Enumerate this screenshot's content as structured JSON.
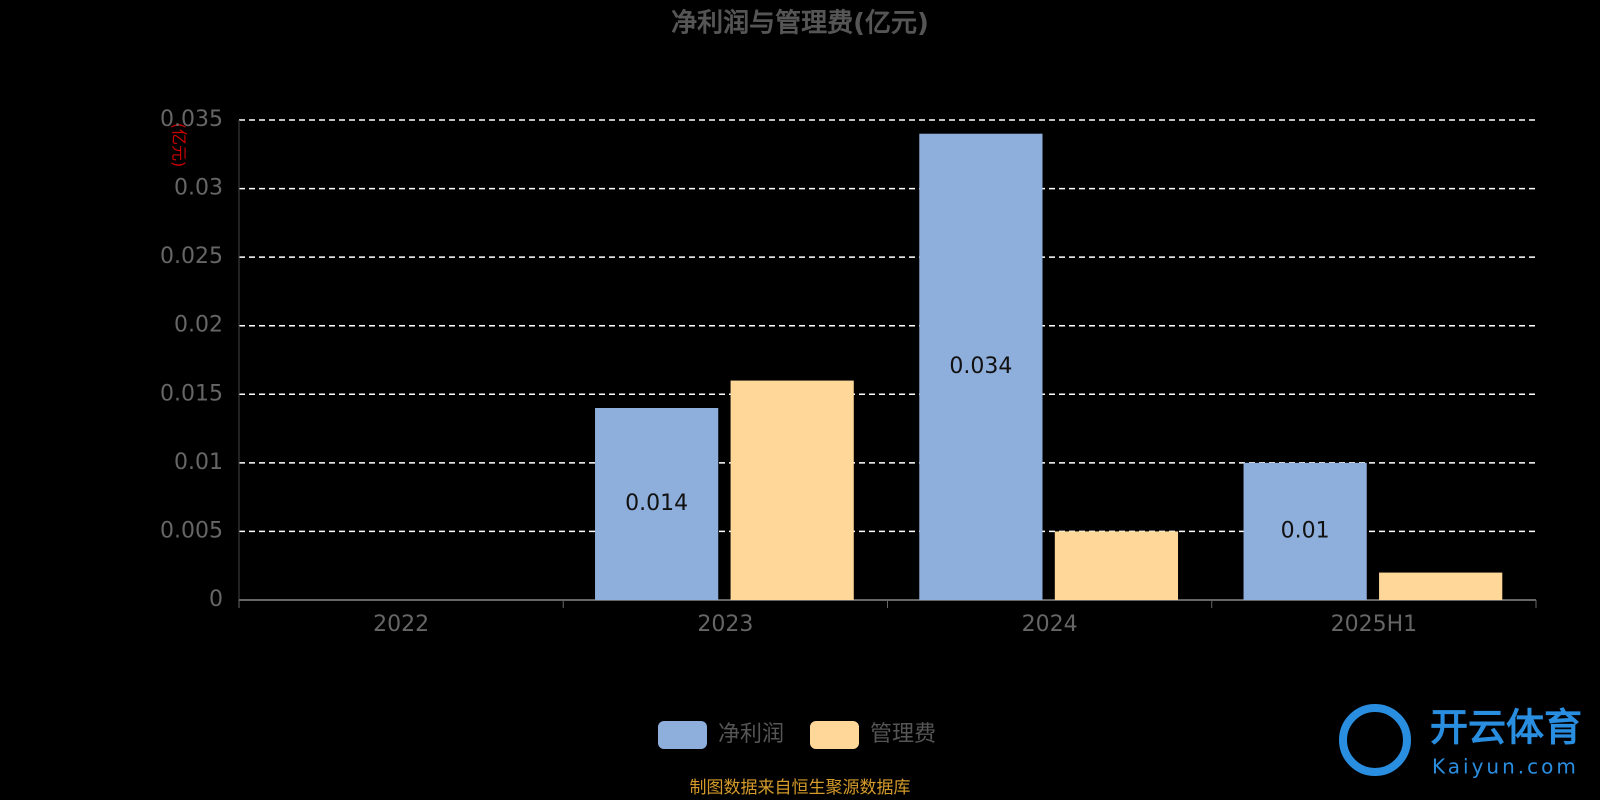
{
  "chart_data": {
    "type": "bar",
    "title": "净利润与管理费(亿元)",
    "y_label": "(亿元)",
    "categories": [
      "2022",
      "2023",
      "2024",
      "2025H1"
    ],
    "series": [
      {
        "name": "净利润",
        "color": "#8eaedb",
        "values": [
          null,
          0.014,
          0.034,
          0.01
        ],
        "labels": true
      },
      {
        "name": "管理费",
        "color": "#ffd899",
        "values": [
          null,
          0.016,
          0.005,
          0.002
        ],
        "labels": false
      }
    ],
    "ylim": [
      0,
      0.035
    ],
    "yticks": [
      0,
      0.005,
      0.01,
      0.015,
      0.02,
      0.025,
      0.03,
      0.035
    ],
    "grid": true,
    "source": "制图数据来自恒生聚源数据库",
    "watermark": "开云体育",
    "watermark_url": "Kaiyun.com"
  }
}
